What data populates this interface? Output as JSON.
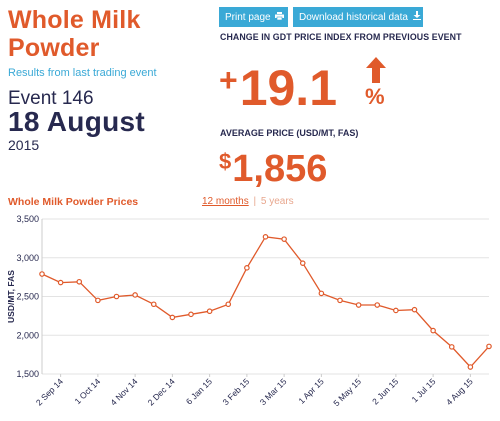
{
  "header": {
    "title_line1": "Whole Milk",
    "title_line2": "Powder",
    "subtitle": "Results from last trading event",
    "event_number": "Event 146",
    "event_date": "18 August",
    "event_year": "2015"
  },
  "toolbar": {
    "print_label": "Print page",
    "download_label": "Download historical data"
  },
  "change": {
    "label": "CHANGE IN GDT PRICE INDEX FROM PREVIOUS EVENT",
    "sign": "+",
    "value": "19.1",
    "unit": "%"
  },
  "average": {
    "label": "AVERAGE PRICE (USD/MT, FAS)",
    "currency": "$",
    "value": "1,856"
  },
  "chart_section": {
    "title": "Whole Milk Powder Prices",
    "range_12": "12 months",
    "range_sep": "|",
    "range_5": "5 years"
  },
  "colors": {
    "accent": "#e05a2b",
    "navy": "#27294f",
    "button": "#3aa9d6"
  },
  "chart_data": {
    "type": "line",
    "title": "Whole Milk Powder Prices",
    "ylabel": "USD/MT, FAS",
    "xlabel": "",
    "ylim": [
      1500,
      3500
    ],
    "yticks": [
      1500,
      2000,
      2500,
      3000,
      3500
    ],
    "ytick_labels": [
      "1,500",
      "2,000",
      "2,500",
      "3,000",
      "3,500"
    ],
    "grid": true,
    "series": [
      {
        "values": [
          2790,
          2680,
          2690,
          2450,
          2500,
          2520,
          2400,
          2230,
          2270,
          2310,
          2400,
          2870,
          3270,
          3240,
          2930,
          2540,
          2450,
          2390,
          2390,
          2320,
          2330,
          2060,
          1850,
          1590,
          1856
        ]
      }
    ],
    "x_labels": [
      "2 Sep 14",
      "1 Oct 14",
      "4 Nov 14",
      "2 Dec 14",
      "6 Jan 15",
      "3 Feb 15",
      "3 Mar 15",
      "1 Apr 15",
      "5 May 15",
      "2 Jun 15",
      "1 Jul 15",
      "4 Aug 15"
    ],
    "x_label_points": [
      1,
      3,
      5,
      7,
      9,
      11,
      13,
      15,
      17,
      19,
      21,
      23
    ]
  }
}
